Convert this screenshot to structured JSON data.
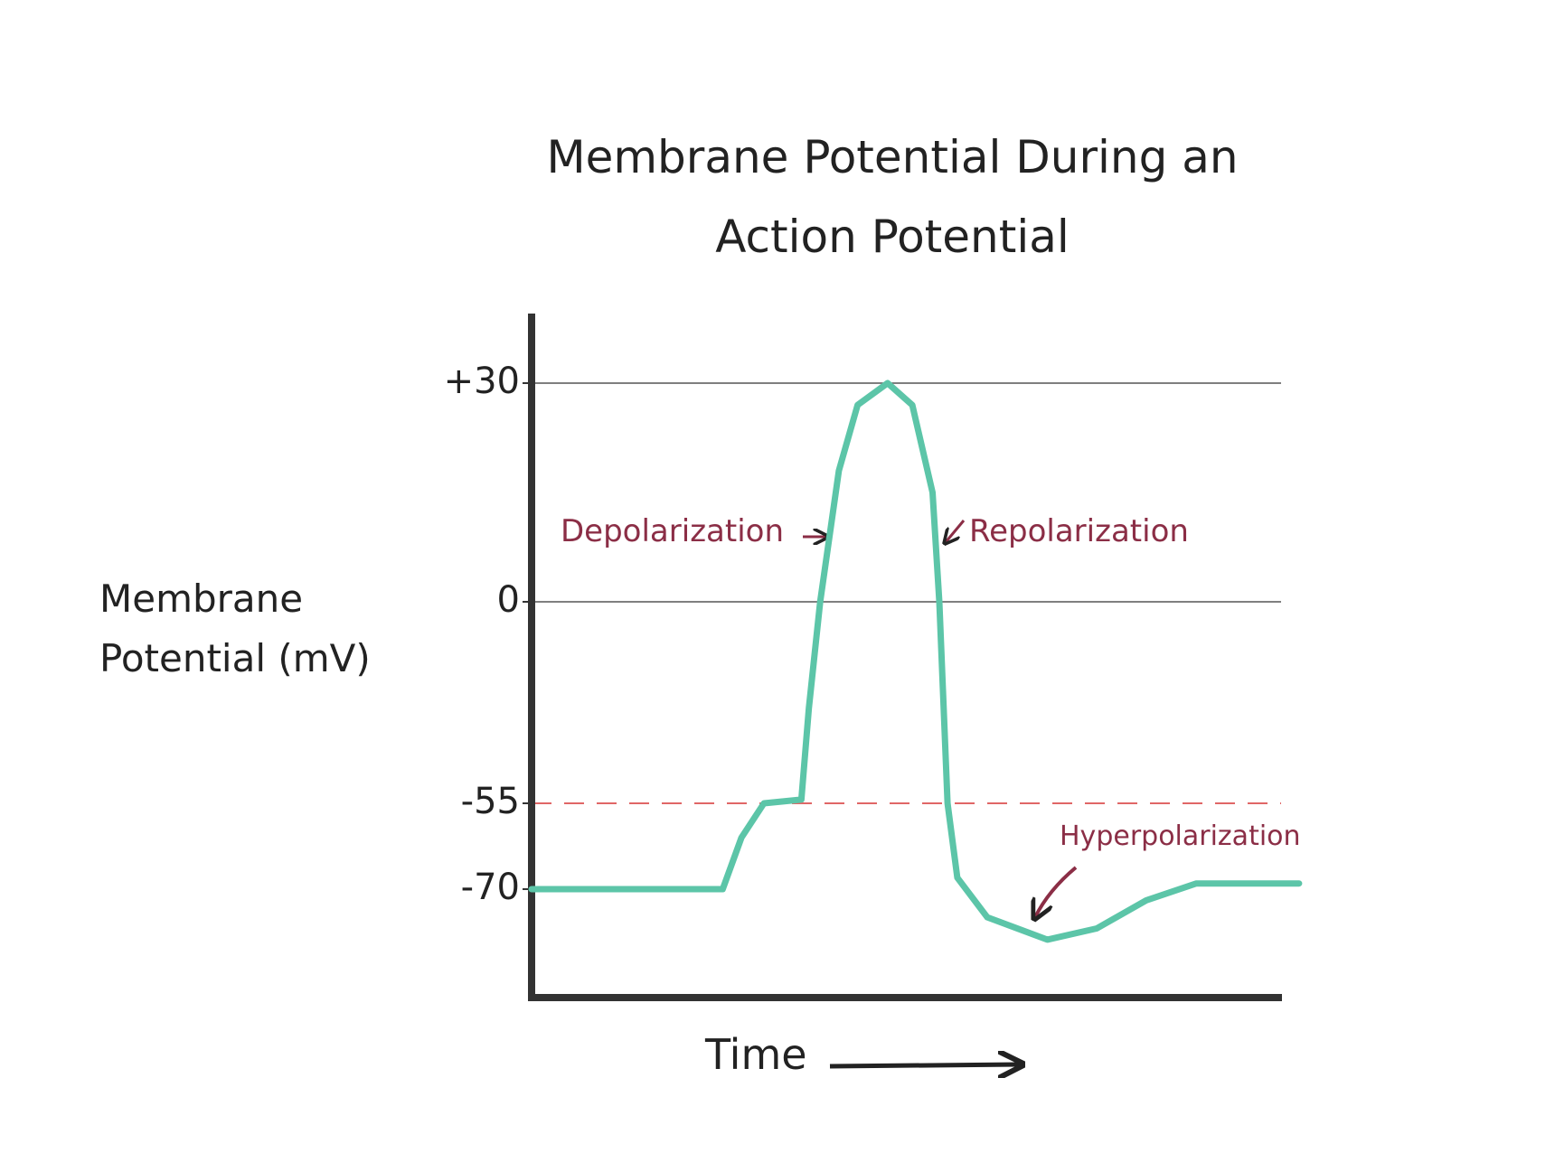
{
  "chart_data": {
    "type": "line",
    "title": "Membrane Potential During an Action Potential",
    "x_label": "Time",
    "y_label": "Membrane Potential (mV)",
    "xlim": [
      0,
      100
    ],
    "ylim": [
      -89,
      40
    ],
    "yticks": [
      -70,
      -55,
      0,
      {
        "value": 30,
        "label": "+30"
      }
    ],
    "grid_values": [
      0,
      30
    ],
    "grid_color": "#555555",
    "threshold": {
      "value": -55,
      "color": "#e06666"
    },
    "series": [
      {
        "color": "#5cc5a8",
        "x": [
          0,
          25.5,
          28,
          31,
          36,
          37,
          38.5,
          41,
          43.5,
          47.5,
          50.8,
          53.5,
          54.4,
          55.5,
          56.8,
          60.8,
          68.8,
          75.4,
          82,
          88.7,
          102.4
        ],
        "values": [
          -70,
          -70,
          -61,
          -55,
          -54,
          -29,
          0,
          18,
          27,
          30,
          27,
          15,
          0,
          -55,
          -68,
          -75,
          -79,
          -77,
          -72,
          -69,
          -69
        ]
      }
    ],
    "annotations": [
      "Depolarization",
      "Repolarization",
      "Hyperpolarization"
    ]
  }
}
